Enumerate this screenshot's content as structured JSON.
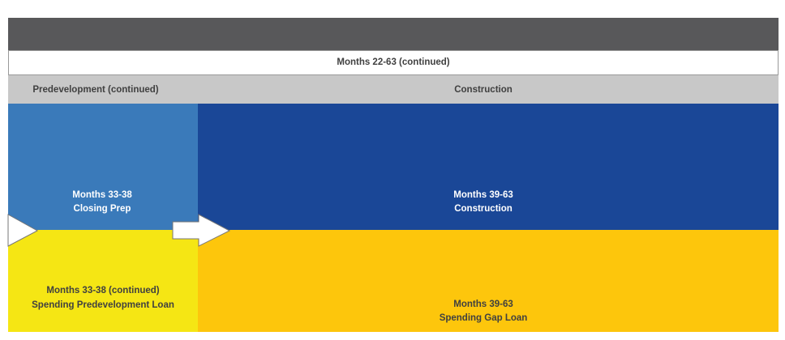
{
  "header": {
    "title": "Months 22-63 (continued)"
  },
  "phases": [
    {
      "label": "Predevelopment (continued)"
    },
    {
      "label": "Construction"
    }
  ],
  "blocks": [
    {
      "period": "Months 33-38",
      "label": "Closing Prep"
    },
    {
      "period": "Months 39-63",
      "label": "Construction"
    },
    {
      "period": "Months 33-38 (continued)",
      "label": "Spending Predevelopment Loan"
    },
    {
      "period": "Months 39-63",
      "label": "Spending Gap Loan"
    }
  ]
}
